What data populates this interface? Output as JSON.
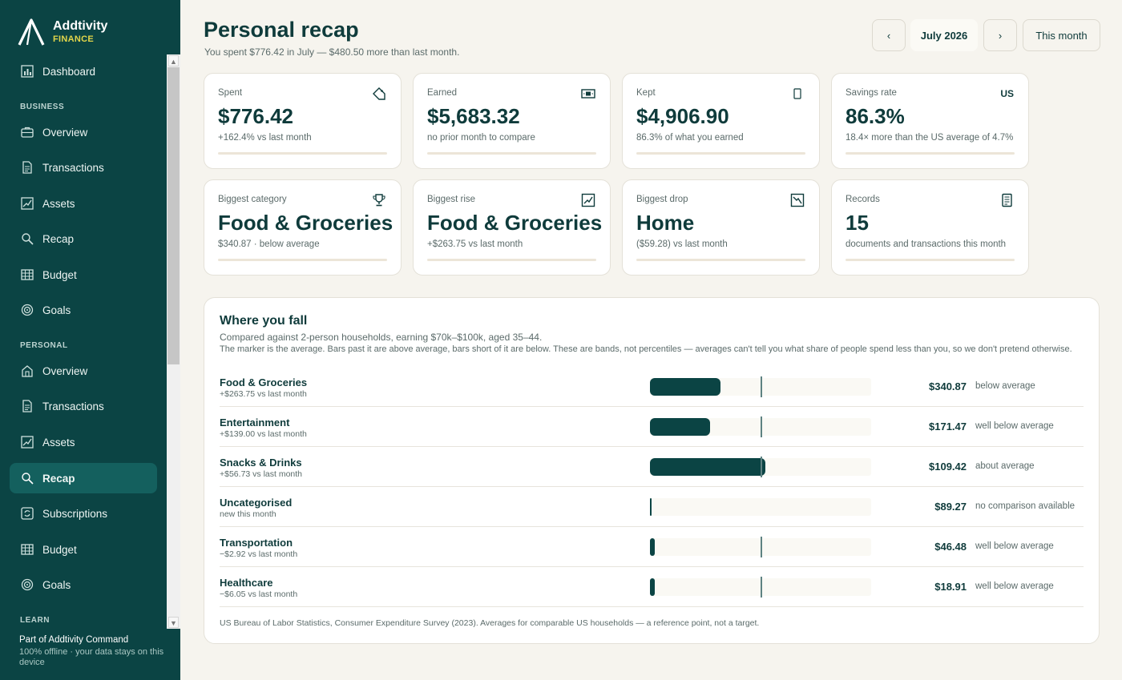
{
  "brand": {
    "name": "Addtivity",
    "sub": "FINANCE"
  },
  "sidebar": {
    "sections": {
      "business": "BUSINESS",
      "personal": "PERSONAL",
      "learn": "LEARN"
    },
    "dashboard": {
      "label": "Dashboard",
      "icon": "bar-chart-icon"
    },
    "business_items": [
      {
        "label": "Overview",
        "icon": "briefcase-icon"
      },
      {
        "label": "Transactions",
        "icon": "document-icon"
      },
      {
        "label": "Assets",
        "icon": "chart-line-icon"
      },
      {
        "label": "Recap",
        "icon": "search-icon"
      },
      {
        "label": "Budget",
        "icon": "grid-icon"
      },
      {
        "label": "Goals",
        "icon": "target-icon"
      }
    ],
    "personal_items": [
      {
        "label": "Overview",
        "icon": "house-icon"
      },
      {
        "label": "Transactions",
        "icon": "document-icon"
      },
      {
        "label": "Assets",
        "icon": "chart-line-icon"
      },
      {
        "label": "Recap",
        "icon": "search-icon",
        "active": true
      },
      {
        "label": "Subscriptions",
        "icon": "refresh-icon"
      },
      {
        "label": "Budget",
        "icon": "grid-icon"
      },
      {
        "label": "Goals",
        "icon": "target-icon"
      }
    ],
    "footer": {
      "title": "Part of Addtivity Command",
      "subtitle": "100% offline · your data stays on this device"
    }
  },
  "header": {
    "title": "Personal recap",
    "subtitle": "You spent $776.42 in July — $480.50 more than last month.",
    "prev": "‹",
    "month": "July 2026",
    "next": "›",
    "this_month": "This month"
  },
  "kpis": [
    {
      "label": "Spent",
      "value": "$776.42",
      "note": "+162.4% vs last month",
      "icon": "tag-icon"
    },
    {
      "label": "Earned",
      "value": "$5,683.32",
      "note": "no prior month to compare",
      "icon": "cash-icon"
    },
    {
      "label": "Kept",
      "value": "$4,906.90",
      "note": "86.3% of what you earned",
      "icon": "phone-icon"
    },
    {
      "label": "Savings rate",
      "value": "86.3%",
      "note": "18.4× more than the US average of 4.7%",
      "badge": "US"
    },
    {
      "label": "Biggest category",
      "value": "Food & Groceries",
      "note": "$340.87 · below average",
      "icon": "trophy-icon"
    },
    {
      "label": "Biggest rise",
      "value": "Food & Groceries",
      "note": "+$263.75 vs last month",
      "icon": "trend-up-icon"
    },
    {
      "label": "Biggest drop",
      "value": "Home",
      "note": "($59.28) vs last month",
      "icon": "trend-down-icon"
    },
    {
      "label": "Records",
      "value": "15",
      "note": "documents and transactions this month",
      "icon": "receipt-icon"
    }
  ],
  "fall": {
    "title": "Where you fall",
    "subtitle": "Compared against 2-person households, earning $70k–$100k, aged 35–44.",
    "description": "The marker is the average. Bars past it are above average, bars short of it are below. These are bands, not percentiles — averages can't tell you what share of people spend less than you, so we don't pretend otherwise.",
    "rows": [
      {
        "category": "Food & Groceries",
        "delta": "+$263.75 vs last month",
        "amount": "$340.87",
        "status": "below average",
        "fill": 0.32,
        "marker": 0.5
      },
      {
        "category": "Entertainment",
        "delta": "+$139.00 vs last month",
        "amount": "$171.47",
        "status": "well below average",
        "fill": 0.27,
        "marker": 0.5
      },
      {
        "category": "Snacks & Drinks",
        "delta": "+$56.73 vs last month",
        "amount": "$109.42",
        "status": "about average",
        "fill": 0.52,
        "marker": 0.5
      },
      {
        "category": "Uncategorised",
        "delta": "new this month",
        "amount": "$89.27",
        "status": "no comparison available",
        "fill": 0.0,
        "marker": null
      },
      {
        "category": "Transportation",
        "delta": "−$2.92 vs last month",
        "amount": "$46.48",
        "status": "well below average",
        "fill": 0.02,
        "marker": 0.5
      },
      {
        "category": "Healthcare",
        "delta": "−$6.05 vs last month",
        "amount": "$18.91",
        "status": "well below average",
        "fill": 0.02,
        "marker": 0.5
      }
    ],
    "source": "US Bureau of Labor Statistics, Consumer Expenditure Survey (2023). Averages for comparable US households — a reference point, not a target."
  },
  "colors": {
    "sidebar": "#0b4444",
    "accent": "#e2d64a",
    "bar": "#0b4444",
    "background": "#f6f4ee"
  }
}
